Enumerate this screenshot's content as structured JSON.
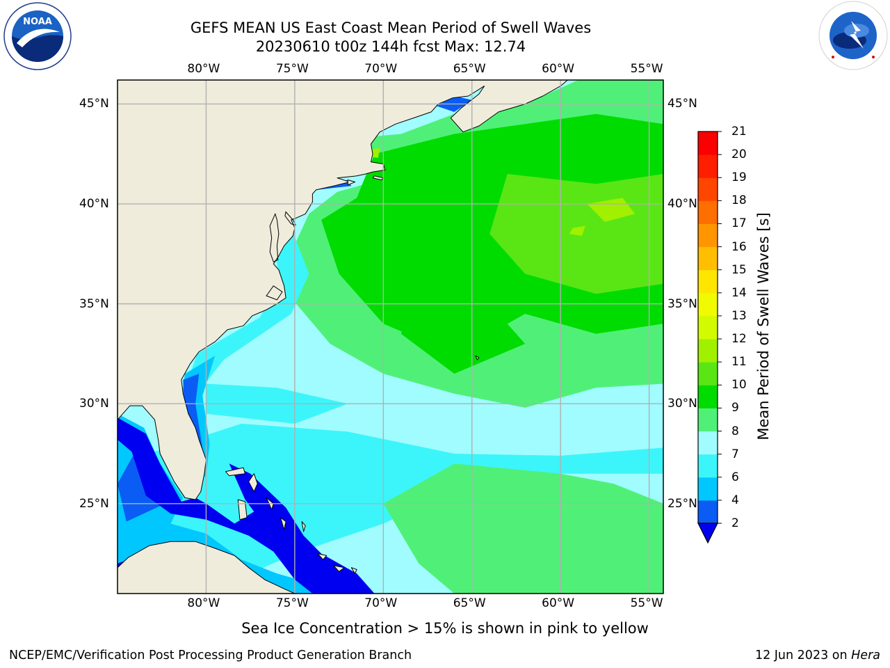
{
  "header": {
    "title_line1": "GEFS MEAN US East Coast Mean Period of Swell Waves",
    "title_line2": "20230610 t00z 144h fcst   Max: 12.74"
  },
  "logos": {
    "left": {
      "name": "noaa-logo",
      "text": "NOAA",
      "ring_text": "NATIONAL OCEANIC AND ATMOSPHERIC ADMINISTRATION · U.S. DEPARTMENT OF COMMERCE"
    },
    "right": {
      "name": "nws-logo",
      "ring_text": "NATIONAL WEATHER SERVICE"
    }
  },
  "map": {
    "lon_ticks": [
      "80°W",
      "75°W",
      "70°W",
      "65°W",
      "60°W",
      "55°W"
    ],
    "lat_ticks": [
      "45°N",
      "40°N",
      "35°N",
      "30°N",
      "25°N"
    ],
    "lon_values": [
      -80,
      -75,
      -70,
      -65,
      -60,
      -55
    ],
    "lat_values": [
      45,
      40,
      35,
      30,
      25
    ],
    "lon_range": [
      -85,
      -54.2
    ],
    "lat_range": [
      20.5,
      46.2
    ],
    "grid": true,
    "colors": {
      "land": "#efecdc",
      "coast": "#000000",
      "grid": "#b0b0b0"
    }
  },
  "colorbar": {
    "label": "Mean Period of Swell Waves [s]",
    "ticks": [
      "2",
      "4",
      "6",
      "7",
      "8",
      "9",
      "10",
      "11",
      "12",
      "13",
      "14",
      "15",
      "16",
      "17",
      "18",
      "19",
      "20",
      "21"
    ],
    "colors": [
      "#0a5cf5",
      "#00c8ff",
      "#3cf5fa",
      "#a0fcff",
      "#50f078",
      "#00dc00",
      "#5ae614",
      "#a0f000",
      "#d2fa00",
      "#f0fa00",
      "#ffe600",
      "#ffbe00",
      "#ff9600",
      "#ff6e00",
      "#ff4600",
      "#ff1e00",
      "#fa0000"
    ],
    "under_color": "#0000f0",
    "extend": "min"
  },
  "caption": "Sea Ice Concentration > 15% is shown in pink to yellow",
  "footer": {
    "left": "NCEP/EMC/Verification Post Processing Product Generation Branch",
    "right_date": "12 Jun 2023 on ",
    "right_host": "Hera"
  }
}
